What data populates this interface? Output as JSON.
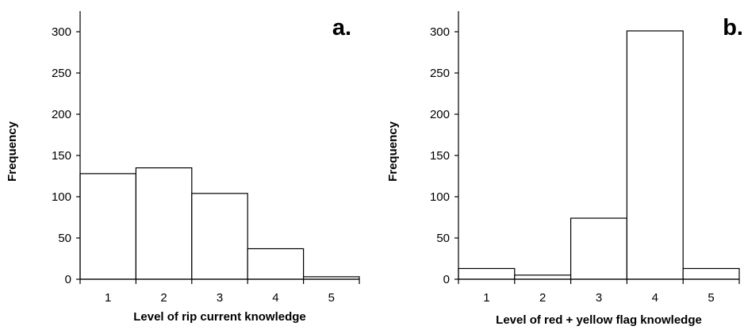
{
  "chart_data": [
    {
      "type": "bar",
      "panel_label": "a.",
      "categories": [
        "1",
        "2",
        "3",
        "4",
        "5"
      ],
      "values": [
        128,
        135,
        104,
        37,
        3
      ],
      "xlabel": "Level of rip current knowledge",
      "ylabel": "Frequency",
      "ylim": [
        0,
        325
      ],
      "yticks": [
        0,
        50,
        100,
        150,
        200,
        250,
        300
      ],
      "grid": false,
      "bar_fill": "#ffffff",
      "bar_stroke": "#000000"
    },
    {
      "type": "bar",
      "panel_label": "b.",
      "categories": [
        "1",
        "2",
        "3",
        "4",
        "5"
      ],
      "values": [
        13,
        5,
        74,
        301,
        13
      ],
      "xlabel": "Level of red + yellow flag knowledge",
      "ylabel": "Frequency",
      "ylim": [
        0,
        325
      ],
      "yticks": [
        0,
        50,
        100,
        150,
        200,
        250,
        300
      ],
      "grid": false,
      "bar_fill": "#ffffff",
      "bar_stroke": "#000000"
    }
  ]
}
